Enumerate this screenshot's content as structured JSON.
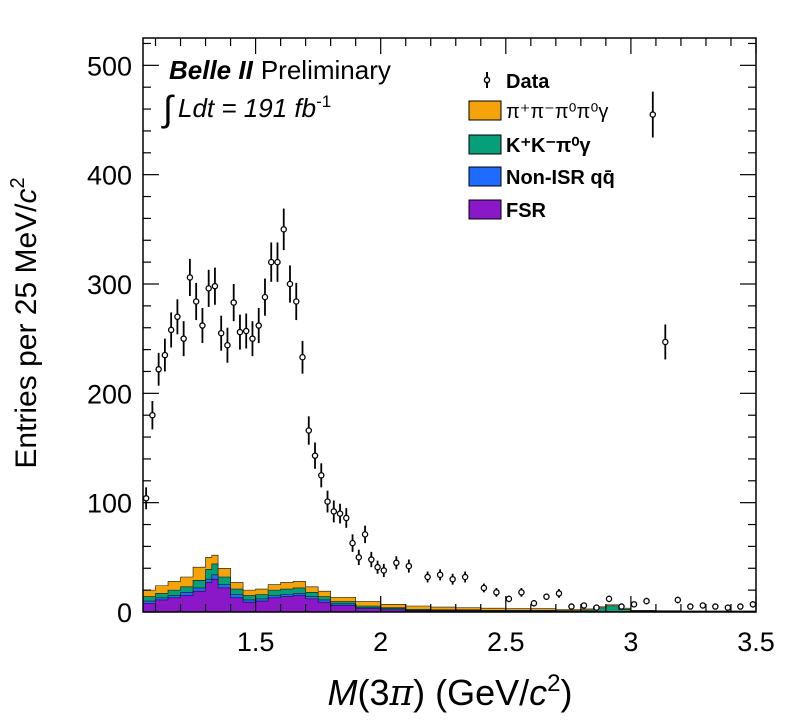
{
  "chart_data": {
    "type": "histogram",
    "title": "",
    "xlabel": "M(3π) (GeV/c²)",
    "xlabel_parts": {
      "m": "M",
      "open": "(3",
      "pi": "π",
      "mid": ") (GeV/",
      "c": "c",
      "sup": "2",
      "close": ")"
    },
    "ylabel": "Entries per 25 MeV/c²",
    "ylabel_parts": {
      "main": "Entries per 25 MeV/",
      "c": "c",
      "sup": "2"
    },
    "xlim": [
      1.05,
      3.5
    ],
    "ylim": [
      0,
      525
    ],
    "x_ticks": [
      {
        "v": 1.5,
        "label": "1.5"
      },
      {
        "v": 2.0,
        "label": "2"
      },
      {
        "v": 2.5,
        "label": "2.5"
      },
      {
        "v": 3.0,
        "label": "3"
      },
      {
        "v": 3.5,
        "label": "3.5"
      }
    ],
    "y_ticks": [
      {
        "v": 0,
        "label": "0"
      },
      {
        "v": 100,
        "label": "100"
      },
      {
        "v": 200,
        "label": "200"
      },
      {
        "v": 300,
        "label": "300"
      },
      {
        "v": 400,
        "label": "400"
      },
      {
        "v": 500,
        "label": "500"
      }
    ],
    "annotation": {
      "experiment": "Belle II",
      "status": "Preliminary",
      "lumi_label": "Ldt = 191 fb",
      "lumi_exp": "-1"
    },
    "legend": [
      {
        "label": "Data",
        "kind": "marker"
      },
      {
        "label": "π⁺π⁻π⁰π⁰γ",
        "kind": "fill",
        "color": "#f5a30a"
      },
      {
        "label": "K⁺K⁻π⁰γ",
        "kind": "fill",
        "color": "#05a07a"
      },
      {
        "label": "Non-ISR qq̄",
        "kind": "fill",
        "color": "#1e6bff"
      },
      {
        "label": "FSR",
        "kind": "fill",
        "color": "#8a18c8"
      }
    ],
    "bin_width": 0.025,
    "stack_edges": [
      1.05,
      1.1,
      1.15,
      1.2,
      1.25,
      1.3,
      1.325,
      1.35,
      1.4,
      1.45,
      1.5,
      1.55,
      1.6,
      1.65,
      1.7,
      1.75,
      1.8,
      1.9,
      2.0,
      2.1,
      2.2,
      2.3,
      2.4,
      2.5,
      2.6,
      2.7,
      2.8,
      2.85,
      2.9,
      2.95,
      3.0,
      3.1,
      3.2,
      3.3,
      3.4,
      3.5
    ],
    "stack_series": [
      {
        "name": "FSR",
        "color": "#8a18c8",
        "values": [
          8,
          11,
          13,
          15,
          19,
          27,
          30,
          22,
          13,
          9,
          10,
          13,
          14,
          15,
          12,
          9,
          6,
          3,
          2,
          1,
          1,
          1,
          0.5,
          0.5,
          0.5,
          0.3,
          0.3,
          0.3,
          0.3,
          0.2,
          0.2,
          0.2,
          0.1,
          0.1,
          0.1
        ]
      },
      {
        "name": "Non-ISR qq̄",
        "color": "#1e6bff",
        "values": [
          2,
          2,
          2,
          3,
          3,
          3,
          4,
          3,
          3,
          2,
          2,
          2,
          2,
          2,
          2,
          2,
          1.5,
          1,
          1,
          0.5,
          0.5,
          0.5,
          0.5,
          0.5,
          0.5,
          0.5,
          0.5,
          0.5,
          0.3,
          0.3,
          0.3,
          0.2,
          0.2,
          0.2,
          0.2
        ]
      },
      {
        "name": "K⁺K⁻π⁰γ",
        "color": "#05a07a",
        "values": [
          4,
          4,
          5,
          5,
          7,
          9,
          10,
          7,
          5,
          4,
          4,
          5,
          5,
          5,
          4,
          3,
          2,
          1.5,
          1,
          1,
          0.5,
          0.5,
          0.5,
          0.5,
          0.5,
          0.5,
          1,
          3,
          5,
          2,
          0.5,
          0.3,
          0.2,
          0.2,
          0.2
        ]
      },
      {
        "name": "π⁺π⁻π⁰π⁰γ",
        "color": "#f5a30a",
        "values": [
          6,
          7,
          8,
          9,
          12,
          11,
          8,
          8,
          6,
          5,
          5,
          5,
          6,
          6,
          5,
          5,
          4,
          4,
          3,
          3,
          2.5,
          2,
          2,
          1.5,
          1.5,
          1,
          1,
          1,
          1,
          1,
          0.5,
          0.5,
          0.5,
          0.5,
          0.5
        ]
      }
    ],
    "data_points": [
      {
        "x": 1.0625,
        "y": 104,
        "err": 10
      },
      {
        "x": 1.0875,
        "y": 180,
        "err": 13
      },
      {
        "x": 1.1125,
        "y": 222,
        "err": 15
      },
      {
        "x": 1.1375,
        "y": 235,
        "err": 15
      },
      {
        "x": 1.1625,
        "y": 258,
        "err": 16
      },
      {
        "x": 1.1875,
        "y": 270,
        "err": 16
      },
      {
        "x": 1.2125,
        "y": 250,
        "err": 16
      },
      {
        "x": 1.2375,
        "y": 306,
        "err": 17
      },
      {
        "x": 1.2625,
        "y": 284,
        "err": 17
      },
      {
        "x": 1.2875,
        "y": 262,
        "err": 16
      },
      {
        "x": 1.3125,
        "y": 296,
        "err": 17
      },
      {
        "x": 1.3375,
        "y": 298,
        "err": 17
      },
      {
        "x": 1.3625,
        "y": 255,
        "err": 16
      },
      {
        "x": 1.3875,
        "y": 244,
        "err": 16
      },
      {
        "x": 1.4125,
        "y": 283,
        "err": 17
      },
      {
        "x": 1.4375,
        "y": 256,
        "err": 16
      },
      {
        "x": 1.4625,
        "y": 257,
        "err": 16
      },
      {
        "x": 1.4875,
        "y": 250,
        "err": 16
      },
      {
        "x": 1.5125,
        "y": 262,
        "err": 16
      },
      {
        "x": 1.5375,
        "y": 288,
        "err": 17
      },
      {
        "x": 1.5625,
        "y": 320,
        "err": 18
      },
      {
        "x": 1.5875,
        "y": 320,
        "err": 18
      },
      {
        "x": 1.6125,
        "y": 350,
        "err": 19
      },
      {
        "x": 1.6375,
        "y": 300,
        "err": 17
      },
      {
        "x": 1.6625,
        "y": 284,
        "err": 17
      },
      {
        "x": 1.6875,
        "y": 233,
        "err": 15
      },
      {
        "x": 1.7125,
        "y": 166,
        "err": 13
      },
      {
        "x": 1.7375,
        "y": 143,
        "err": 12
      },
      {
        "x": 1.7625,
        "y": 125,
        "err": 11
      },
      {
        "x": 1.7875,
        "y": 101,
        "err": 10
      },
      {
        "x": 1.8125,
        "y": 92,
        "err": 10
      },
      {
        "x": 1.8375,
        "y": 90,
        "err": 9
      },
      {
        "x": 1.8625,
        "y": 86,
        "err": 9
      },
      {
        "x": 1.8875,
        "y": 63,
        "err": 8
      },
      {
        "x": 1.9125,
        "y": 50,
        "err": 7
      },
      {
        "x": 1.9375,
        "y": 71,
        "err": 8
      },
      {
        "x": 1.9625,
        "y": 48,
        "err": 7
      },
      {
        "x": 1.9875,
        "y": 41,
        "err": 6
      },
      {
        "x": 2.0125,
        "y": 38,
        "err": 6
      },
      {
        "x": 2.0625,
        "y": 45,
        "err": 6
      },
      {
        "x": 2.1125,
        "y": 42,
        "err": 6
      },
      {
        "x": 2.1875,
        "y": 32,
        "err": 5
      },
      {
        "x": 2.2375,
        "y": 34,
        "err": 5
      },
      {
        "x": 2.2875,
        "y": 30,
        "err": 5
      },
      {
        "x": 2.3375,
        "y": 32,
        "err": 5
      },
      {
        "x": 2.4125,
        "y": 22,
        "err": 4
      },
      {
        "x": 2.4625,
        "y": 18,
        "err": 4
      },
      {
        "x": 2.5125,
        "y": 12,
        "err": 3
      },
      {
        "x": 2.5625,
        "y": 18,
        "err": 4
      },
      {
        "x": 2.6125,
        "y": 8,
        "err": 3
      },
      {
        "x": 2.6625,
        "y": 14,
        "err": 3
      },
      {
        "x": 2.7125,
        "y": 17,
        "err": 4
      },
      {
        "x": 2.7625,
        "y": 5,
        "err": 2
      },
      {
        "x": 2.8125,
        "y": 6,
        "err": 2
      },
      {
        "x": 2.8625,
        "y": 4,
        "err": 2
      },
      {
        "x": 2.9125,
        "y": 12,
        "err": 3
      },
      {
        "x": 2.9625,
        "y": 5,
        "err": 2
      },
      {
        "x": 3.0125,
        "y": 7,
        "err": 2
      },
      {
        "x": 3.0625,
        "y": 10,
        "err": 3
      },
      {
        "x": 3.0875,
        "y": 455,
        "err": 21
      },
      {
        "x": 3.1375,
        "y": 247,
        "err": 16
      },
      {
        "x": 3.1875,
        "y": 11,
        "err": 3
      },
      {
        "x": 3.2375,
        "y": 5,
        "err": 2
      },
      {
        "x": 3.2875,
        "y": 6,
        "err": 2
      },
      {
        "x": 3.3375,
        "y": 5,
        "err": 2
      },
      {
        "x": 3.3875,
        "y": 4,
        "err": 2
      },
      {
        "x": 3.4375,
        "y": 5,
        "err": 2
      },
      {
        "x": 3.4875,
        "y": 7,
        "err": 3
      }
    ]
  }
}
